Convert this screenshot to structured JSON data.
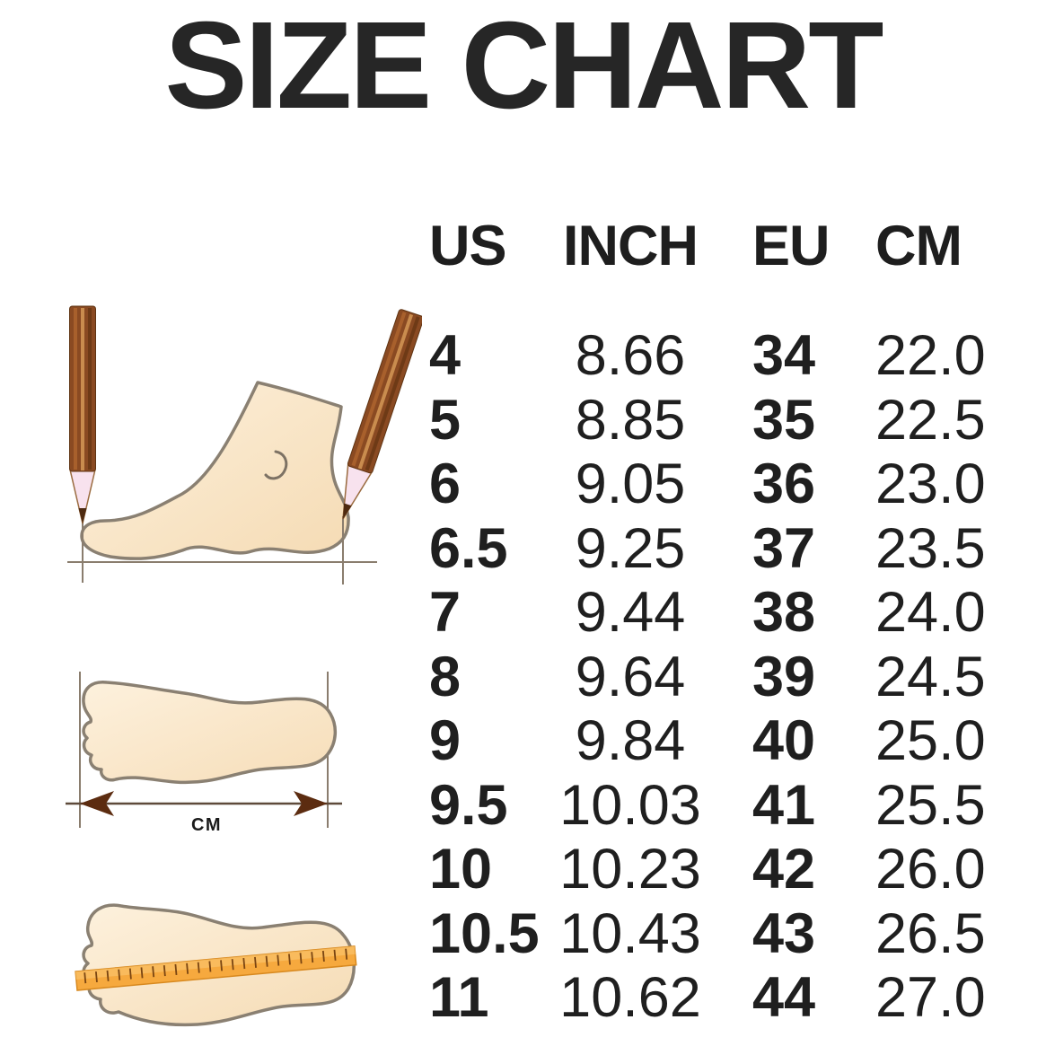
{
  "title": "SIZE CHART",
  "colors": {
    "background": "#ffffff",
    "text": "#232323",
    "foot_fill_light": "#fdf1dd",
    "foot_fill_dark": "#f5dbb4",
    "foot_outline": "#8a8072",
    "pencil_wood": "#8a4a22",
    "pencil_stripe_light": "#c98c4e",
    "pencil_stripe_dark": "#6e3a16",
    "pencil_tip_wood": "#f8e2ee",
    "pencil_lead": "#4e2a10",
    "guide_line": "#8a7d6e",
    "arrow": "#5c2c10",
    "ruler_fill": "#f6a93e",
    "ruler_border": "#d8891f",
    "ruler_tick": "#7a4512"
  },
  "illustrations": {
    "foot_side_measure": {
      "description": "side view of a foot measured between two pencils"
    },
    "footprint_length": {
      "unit_label": "CM",
      "description": "footprint with length measurement arrow"
    },
    "foot_ruler": {
      "description": "footprint with measuring tape laid across it"
    }
  },
  "chart_data": {
    "type": "table",
    "title": "SIZE CHART",
    "columns": [
      "US",
      "INCH",
      "EU",
      "CM"
    ],
    "rows": [
      [
        "4",
        "8.66",
        "34",
        "22.0"
      ],
      [
        "5",
        "8.85",
        "35",
        "22.5"
      ],
      [
        "6",
        "9.05",
        "36",
        "23.0"
      ],
      [
        "6.5",
        "9.25",
        "37",
        "23.5"
      ],
      [
        "7",
        "9.44",
        "38",
        "24.0"
      ],
      [
        "8",
        "9.64",
        "39",
        "24.5"
      ],
      [
        "9",
        "9.84",
        "40",
        "25.0"
      ],
      [
        "9.5",
        "10.03",
        "41",
        "25.5"
      ],
      [
        "10",
        "10.23",
        "42",
        "26.0"
      ],
      [
        "10.5",
        "10.43",
        "43",
        "26.5"
      ],
      [
        "11",
        "10.62",
        "44",
        "27.0"
      ]
    ]
  }
}
